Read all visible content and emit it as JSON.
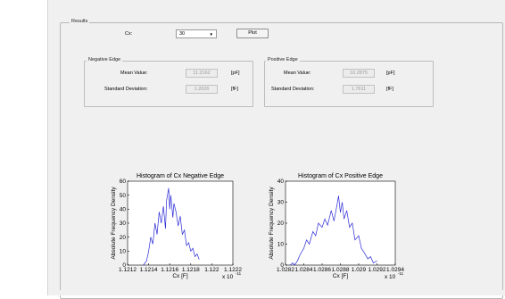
{
  "results": {
    "title": "Results",
    "cx_label": "Cx:",
    "cx_value": "30",
    "plot_label": "Plot"
  },
  "negative_edge": {
    "title": "Negative Edge",
    "mean_label": "Mean Value:",
    "mean_value": "11.2162",
    "mean_unit": "[pF]",
    "std_label": "Standard Deviation:",
    "std_value": "1.2026",
    "std_unit": "[fF]"
  },
  "positive_edge": {
    "title": "Positive Edge",
    "mean_label": "Mean Value:",
    "mean_value": "10.2875",
    "mean_unit": "[pF]",
    "std_label": "Standard Deviation:",
    "std_value": "1.7611",
    "std_unit": "[fF]"
  },
  "colors": {
    "line": "#2a2ad8",
    "panel": "#f0f0f0",
    "axis": "#000000"
  },
  "icons": {
    "dropdown": "chevron-down-icon"
  },
  "chart_data": [
    {
      "type": "line",
      "title": "Histogram of Cx Negative Edge",
      "xlabel": "Cx [F]",
      "ylabel": "Absolute Frequency Density",
      "x_exponent_label": "x 10",
      "x_exponent_power": "-11",
      "xlim": [
        1.1212,
        1.1222
      ],
      "ylim": [
        0,
        60
      ],
      "xticks": [
        "1.1212",
        "1.1214",
        "1.1216",
        "1.1218",
        "1.122",
        "1.1222"
      ],
      "yticks": [
        "0",
        "10",
        "20",
        "30",
        "40",
        "50",
        "60"
      ],
      "grid": false,
      "series": [
        {
          "x": [
            1.12135,
            1.12138,
            1.1214,
            1.12142,
            1.12144,
            1.12146,
            1.12148,
            1.1215,
            1.12152,
            1.12154,
            1.12156,
            1.12157,
            1.12159,
            1.1216,
            1.12161,
            1.12163,
            1.12164,
            1.12166,
            1.12168,
            1.1217,
            1.12172,
            1.12174,
            1.12176,
            1.12178,
            1.1218,
            1.12182,
            1.12184,
            1.12186,
            1.12188
          ],
          "y": [
            0,
            3,
            10,
            20,
            15,
            30,
            22,
            38,
            30,
            42,
            26,
            46,
            55,
            40,
            50,
            34,
            44,
            38,
            28,
            35,
            22,
            25,
            14,
            16,
            10,
            12,
            6,
            8,
            4
          ]
        }
      ]
    },
    {
      "type": "line",
      "title": "Histogram of Cx Positive Edge",
      "xlabel": "Cx [F]",
      "ylabel": "Absolute Frequency Density",
      "x_exponent_label": "x 10",
      "x_exponent_power": "-11",
      "xlim": [
        1.0282,
        1.0294
      ],
      "ylim": [
        0,
        40
      ],
      "xticks": [
        "1.0282",
        "1.0284",
        "1.0286",
        "1.0288",
        "1.029",
        "1.0292",
        "1.0294"
      ],
      "yticks": [
        "0",
        "10",
        "20",
        "30",
        "40"
      ],
      "grid": false,
      "series": [
        {
          "x": [
            1.02825,
            1.02828,
            1.0283,
            1.02833,
            1.02836,
            1.0284,
            1.02843,
            1.02846,
            1.0285,
            1.02853,
            1.02856,
            1.0286,
            1.02863,
            1.02866,
            1.0287,
            1.02873,
            1.02876,
            1.02878,
            1.0288,
            1.02882,
            1.02884,
            1.02887,
            1.0289,
            1.02893,
            1.02896,
            1.029,
            1.02903,
            1.02906,
            1.0291,
            1.02913,
            1.02916,
            1.0292
          ],
          "y": [
            0,
            1,
            0,
            2,
            5,
            8,
            12,
            10,
            16,
            14,
            20,
            18,
            22,
            19,
            26,
            21,
            28,
            33,
            25,
            30,
            22,
            26,
            18,
            20,
            12,
            14,
            8,
            6,
            3,
            4,
            1,
            2
          ]
        }
      ]
    }
  ]
}
